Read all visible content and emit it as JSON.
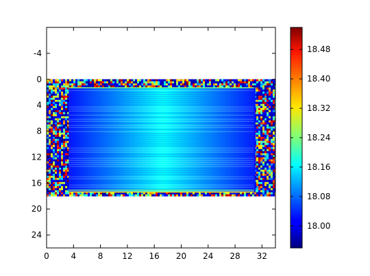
{
  "chart_data": {
    "type": "heatmap",
    "title": "",
    "xlabel": "",
    "ylabel": "",
    "xlim": [
      0,
      34
    ],
    "ylim": [
      26,
      -8
    ],
    "y_inverted": true,
    "x_ticks": [
      0,
      4,
      8,
      12,
      16,
      20,
      24,
      28,
      32
    ],
    "y_ticks": [
      -4,
      0,
      4,
      8,
      12,
      16,
      20,
      24
    ],
    "image_extent": {
      "x": [
        0,
        34
      ],
      "y": [
        0,
        18
      ]
    },
    "inner_region": {
      "x": [
        3.3,
        30.8
      ],
      "y": [
        1.3,
        17.4
      ]
    },
    "colormap": "jet",
    "colorbar": {
      "min": 17.94,
      "max": 18.54,
      "ticks": [
        18.0,
        18.08,
        18.16,
        18.24,
        18.32,
        18.4,
        18.48
      ],
      "tick_labels": [
        "18.00",
        "18.08",
        "18.16",
        "18.24",
        "18.32",
        "18.40",
        "18.48"
      ],
      "placement": "right"
    },
    "dominant_value": 18.14,
    "grid": false,
    "legend": "none"
  }
}
